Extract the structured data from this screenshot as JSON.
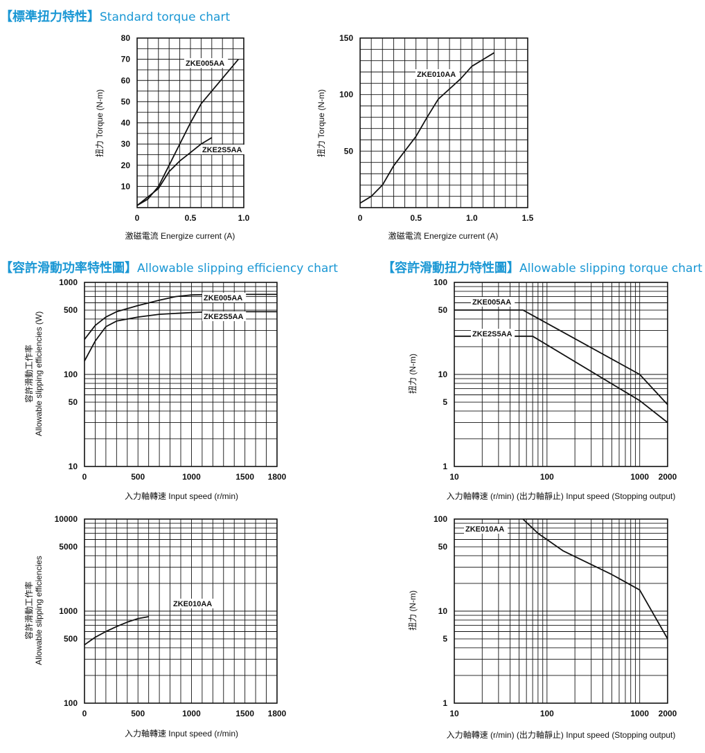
{
  "sections": {
    "standard": {
      "cjk": "【標準扭力特性】",
      "en": "Standard torque chart"
    },
    "efficiency": {
      "cjk": "【容許滑動功率特性圖】",
      "en": "Allowable slipping efficiency chart"
    },
    "slip_torque": {
      "cjk": "【容許滑動扭力特性圖】",
      "en": "Allowable slipping torque chart"
    }
  },
  "chart_data": [
    {
      "id": "c1",
      "type": "line",
      "xlabel": "激磁電流 Energize current (A)",
      "ylabel": "扭力 Torque (N-m)",
      "xscale": "linear",
      "yscale": "linear",
      "xlim": [
        0,
        1.0
      ],
      "ylim": [
        0,
        80
      ],
      "xticks": [
        {
          "v": 0,
          "t": "0"
        },
        {
          "v": 0.5,
          "t": "0.5"
        },
        {
          "v": 1.0,
          "t": "1.0"
        }
      ],
      "yticks": [
        {
          "v": 10,
          "t": "10"
        },
        {
          "v": 20,
          "t": "20"
        },
        {
          "v": 30,
          "t": "30"
        },
        {
          "v": 40,
          "t": "40"
        },
        {
          "v": 50,
          "t": "50"
        },
        {
          "v": 60,
          "t": "60"
        },
        {
          "v": 70,
          "t": "70"
        },
        {
          "v": 80,
          "t": "80"
        }
      ],
      "grid": true,
      "series": [
        {
          "name": "ZKE005AA",
          "x": [
            0,
            0.1,
            0.2,
            0.3,
            0.4,
            0.5,
            0.6,
            0.7,
            0.8,
            0.9,
            0.95
          ],
          "y": [
            1,
            4,
            10,
            20,
            30,
            40,
            49,
            55,
            61,
            67,
            70
          ]
        },
        {
          "name": "ZKE2S5AA",
          "x": [
            0,
            0.1,
            0.2,
            0.3,
            0.4,
            0.5,
            0.6,
            0.7
          ],
          "y": [
            1,
            5,
            9,
            17,
            22,
            26,
            30,
            33
          ]
        }
      ]
    },
    {
      "id": "c2",
      "type": "line",
      "xlabel": "激磁電流 Energize current (A)",
      "ylabel": "扭力 Torque (N-m)",
      "xscale": "linear",
      "yscale": "linear",
      "xlim": [
        0,
        1.5
      ],
      "ylim": [
        0,
        150
      ],
      "xticks": [
        {
          "v": 0,
          "t": "0"
        },
        {
          "v": 0.5,
          "t": "0.5"
        },
        {
          "v": 1.0,
          "t": "1.0"
        },
        {
          "v": 1.5,
          "t": "1.5"
        }
      ],
      "yticks": [
        {
          "v": 50,
          "t": "50"
        },
        {
          "v": 100,
          "t": "100"
        },
        {
          "v": 150,
          "t": "150"
        }
      ],
      "grid": true,
      "series": [
        {
          "name": "ZKE010AA",
          "x": [
            0,
            0.1,
            0.2,
            0.3,
            0.4,
            0.5,
            0.6,
            0.7,
            0.8,
            0.9,
            1.0,
            1.1,
            1.2
          ],
          "y": [
            4,
            10,
            20,
            37,
            50,
            63,
            80,
            96,
            105,
            114,
            125,
            131,
            137
          ]
        }
      ]
    },
    {
      "id": "c3",
      "type": "line",
      "xlabel": "入力軸轉速 Input speed (r/min)",
      "ylabel": "容許滑動工作率 Allowable slipping efficiencies (W)",
      "xscale": "linear",
      "yscale": "log",
      "xlim": [
        0,
        1800
      ],
      "ylim": [
        10,
        1000
      ],
      "xticks": [
        {
          "v": 0,
          "t": "0"
        },
        {
          "v": 500,
          "t": "500"
        },
        {
          "v": 1000,
          "t": "1000"
        },
        {
          "v": 1500,
          "t": "1500"
        },
        {
          "v": 1800,
          "t": "1800"
        }
      ],
      "yticks": [
        {
          "v": 10,
          "t": "10"
        },
        {
          "v": 50,
          "t": "50"
        },
        {
          "v": 100,
          "t": "100"
        },
        {
          "v": 500,
          "t": "500"
        },
        {
          "v": 1000,
          "t": "1000"
        }
      ],
      "grid": true,
      "series": [
        {
          "name": "ZKE005AA",
          "x": [
            0,
            100,
            200,
            300,
            500,
            700,
            850,
            1000,
            1200,
            1500,
            1800
          ],
          "y": [
            240,
            340,
            420,
            480,
            560,
            640,
            700,
            730,
            740,
            740,
            740
          ]
        },
        {
          "name": "ZKE2S5AA",
          "x": [
            0,
            100,
            200,
            300,
            500,
            700,
            1000,
            1200,
            1500,
            1800
          ],
          "y": [
            140,
            230,
            330,
            380,
            420,
            450,
            470,
            480,
            480,
            480
          ]
        }
      ]
    },
    {
      "id": "c4",
      "type": "line",
      "xlabel": "入力軸轉速 (r/min) (出力軸靜止) Input speed (Stopping output)",
      "ylabel": "扭力 (N-m)",
      "xscale": "log",
      "yscale": "log",
      "xlim": [
        10,
        2000
      ],
      "ylim": [
        1,
        100
      ],
      "xticks": [
        {
          "v": 10,
          "t": "10"
        },
        {
          "v": 100,
          "t": "100"
        },
        {
          "v": 1000,
          "t": "1000"
        },
        {
          "v": 2000,
          "t": "2000"
        }
      ],
      "yticks": [
        {
          "v": 1,
          "t": "1"
        },
        {
          "v": 5,
          "t": "5"
        },
        {
          "v": 10,
          "t": "10"
        },
        {
          "v": 50,
          "t": "50"
        },
        {
          "v": 100,
          "t": "100"
        }
      ],
      "grid": true,
      "series": [
        {
          "name": "ZKE005AA",
          "x": [
            10,
            55,
            1000,
            2000
          ],
          "y": [
            50,
            50,
            10,
            4.7
          ]
        },
        {
          "name": "ZKE2S5AA",
          "x": [
            10,
            70,
            1000,
            2000
          ],
          "y": [
            26,
            26,
            5.2,
            3
          ]
        }
      ]
    },
    {
      "id": "c5",
      "type": "line",
      "xlabel": "入力軸轉速 Input speed (r/min)",
      "ylabel": "容許滑動工作率 Allowable slipping efficiencies",
      "xscale": "linear",
      "yscale": "log",
      "xlim": [
        0,
        1800
      ],
      "ylim": [
        100,
        10000
      ],
      "xticks": [
        {
          "v": 0,
          "t": "0"
        },
        {
          "v": 500,
          "t": "500"
        },
        {
          "v": 1000,
          "t": "1000"
        },
        {
          "v": 1500,
          "t": "1500"
        },
        {
          "v": 1800,
          "t": "1800"
        }
      ],
      "yticks": [
        {
          "v": 100,
          "t": "100"
        },
        {
          "v": 500,
          "t": "500"
        },
        {
          "v": 1000,
          "t": "1000"
        },
        {
          "v": 5000,
          "t": "5000"
        },
        {
          "v": 10000,
          "t": "10000"
        }
      ],
      "grid": true,
      "series": [
        {
          "name": "ZKE010AA",
          "x": [
            0,
            100,
            200,
            300,
            400,
            500,
            600
          ],
          "y": [
            430,
            520,
            600,
            680,
            760,
            830,
            870
          ]
        }
      ]
    },
    {
      "id": "c6",
      "type": "line",
      "xlabel": "入力軸轉速 (r/min) (出力軸靜止) Input speed (Stopping output)",
      "ylabel": "扭力 (N-m)",
      "xscale": "log",
      "yscale": "log",
      "xlim": [
        10,
        2000
      ],
      "ylim": [
        1,
        100
      ],
      "xticks": [
        {
          "v": 10,
          "t": "10"
        },
        {
          "v": 100,
          "t": "100"
        },
        {
          "v": 1000,
          "t": "1000"
        },
        {
          "v": 2000,
          "t": "2000"
        }
      ],
      "yticks": [
        {
          "v": 1,
          "t": "1"
        },
        {
          "v": 5,
          "t": "5"
        },
        {
          "v": 10,
          "t": "10"
        },
        {
          "v": 50,
          "t": "50"
        },
        {
          "v": 100,
          "t": "100"
        }
      ],
      "grid": true,
      "series": [
        {
          "name": "ZKE010AA",
          "x": [
            55,
            80,
            150,
            500,
            1000,
            2000
          ],
          "y": [
            100,
            70,
            45,
            25,
            17,
            5
          ]
        }
      ]
    }
  ]
}
